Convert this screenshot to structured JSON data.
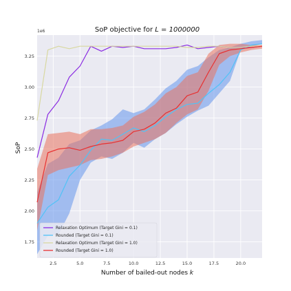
{
  "chart_data": {
    "type": "line",
    "title": "SoP objective for ",
    "title_math": "L = 1000000",
    "xlabel": "Number of bailed-out nodes ",
    "xlabel_math": "k",
    "ylabel": "SoP",
    "y_exponent_label": "1e6",
    "xlim": [
      1,
      22
    ],
    "ylim": [
      1.62,
      3.42
    ],
    "x_ticks": [
      2.5,
      5.0,
      7.5,
      10.0,
      12.5,
      15.0,
      17.5,
      20.0
    ],
    "x_tick_labels": [
      "2.5",
      "5.0",
      "7.5",
      "10.0",
      "12.5",
      "15.0",
      "17.5",
      "20.0"
    ],
    "y_ticks": [
      1.75,
      2.0,
      2.25,
      2.5,
      2.75,
      3.0,
      3.25
    ],
    "y_tick_labels": [
      "1.75",
      "2.00",
      "2.25",
      "2.50",
      "2.75",
      "3.00",
      "3.25"
    ],
    "grid": true,
    "legend_position": "lower-left",
    "x": [
      1,
      2,
      3,
      4,
      5,
      6,
      7,
      8,
      9,
      10,
      11,
      12,
      13,
      14,
      15,
      16,
      17,
      18,
      19,
      20,
      21,
      22
    ],
    "series": [
      {
        "name": "Relaxation Optimum (Target Gini = 0.1)",
        "color": "#8a2be2",
        "values": [
          2.43,
          2.78,
          2.89,
          3.08,
          3.17,
          3.33,
          3.29,
          3.33,
          3.32,
          3.33,
          3.31,
          3.31,
          3.31,
          3.32,
          3.34,
          3.31,
          3.32,
          3.33,
          3.32,
          3.32,
          3.32,
          3.33
        ]
      },
      {
        "name": "Rounded (Target Gini = 0.1)",
        "color": "#4fc3f7",
        "values": [
          1.9,
          2.03,
          2.09,
          2.28,
          2.37,
          2.49,
          2.58,
          2.57,
          2.62,
          2.67,
          2.64,
          2.69,
          2.76,
          2.82,
          2.86,
          2.87,
          2.95,
          3.02,
          3.12,
          3.3,
          3.34,
          3.35
        ],
        "band": {
          "color": "#6495ed",
          "lower": [
            1.65,
            1.8,
            1.81,
            1.98,
            2.25,
            2.39,
            2.44,
            2.42,
            2.47,
            2.55,
            2.51,
            2.58,
            2.63,
            2.7,
            2.76,
            2.81,
            2.85,
            2.95,
            3.05,
            3.3,
            3.33,
            3.35
          ],
          "upper": [
            2.15,
            2.38,
            2.43,
            2.54,
            2.57,
            2.65,
            2.69,
            2.74,
            2.82,
            2.79,
            2.82,
            2.9,
            2.99,
            3.05,
            3.14,
            3.17,
            3.24,
            3.3,
            3.32,
            3.35,
            3.37,
            3.38
          ]
        }
      },
      {
        "name": "Relaxation Optimum (Target Gini = 1.0)",
        "color": "#d8d8a0",
        "values": [
          2.73,
          3.3,
          3.33,
          3.31,
          3.33,
          3.33,
          3.33,
          3.33,
          3.33,
          3.33,
          3.33,
          3.33,
          3.33,
          3.33,
          3.32,
          3.32,
          3.33,
          3.33,
          3.32,
          3.32,
          3.33,
          3.33
        ]
      },
      {
        "name": "Rounded (Target Gini = 1.0)",
        "color": "#e83030",
        "values": [
          2.07,
          2.47,
          2.5,
          2.51,
          2.49,
          2.52,
          2.54,
          2.55,
          2.57,
          2.64,
          2.66,
          2.71,
          2.79,
          2.83,
          2.93,
          2.96,
          3.12,
          3.27,
          3.3,
          3.31,
          3.32,
          3.33
        ],
        "band": {
          "color": "#e9735f",
          "lower": [
            1.84,
            2.29,
            2.33,
            2.35,
            2.37,
            2.41,
            2.42,
            2.44,
            2.47,
            2.52,
            2.55,
            2.58,
            2.63,
            2.71,
            2.78,
            2.82,
            2.97,
            3.18,
            3.25,
            3.28,
            3.3,
            3.31
          ],
          "upper": [
            2.34,
            2.62,
            2.63,
            2.64,
            2.62,
            2.66,
            2.66,
            2.67,
            2.69,
            2.76,
            2.8,
            2.86,
            2.95,
            3.0,
            3.09,
            3.12,
            3.27,
            3.34,
            3.35,
            3.35,
            3.34,
            3.34
          ]
        }
      }
    ]
  }
}
